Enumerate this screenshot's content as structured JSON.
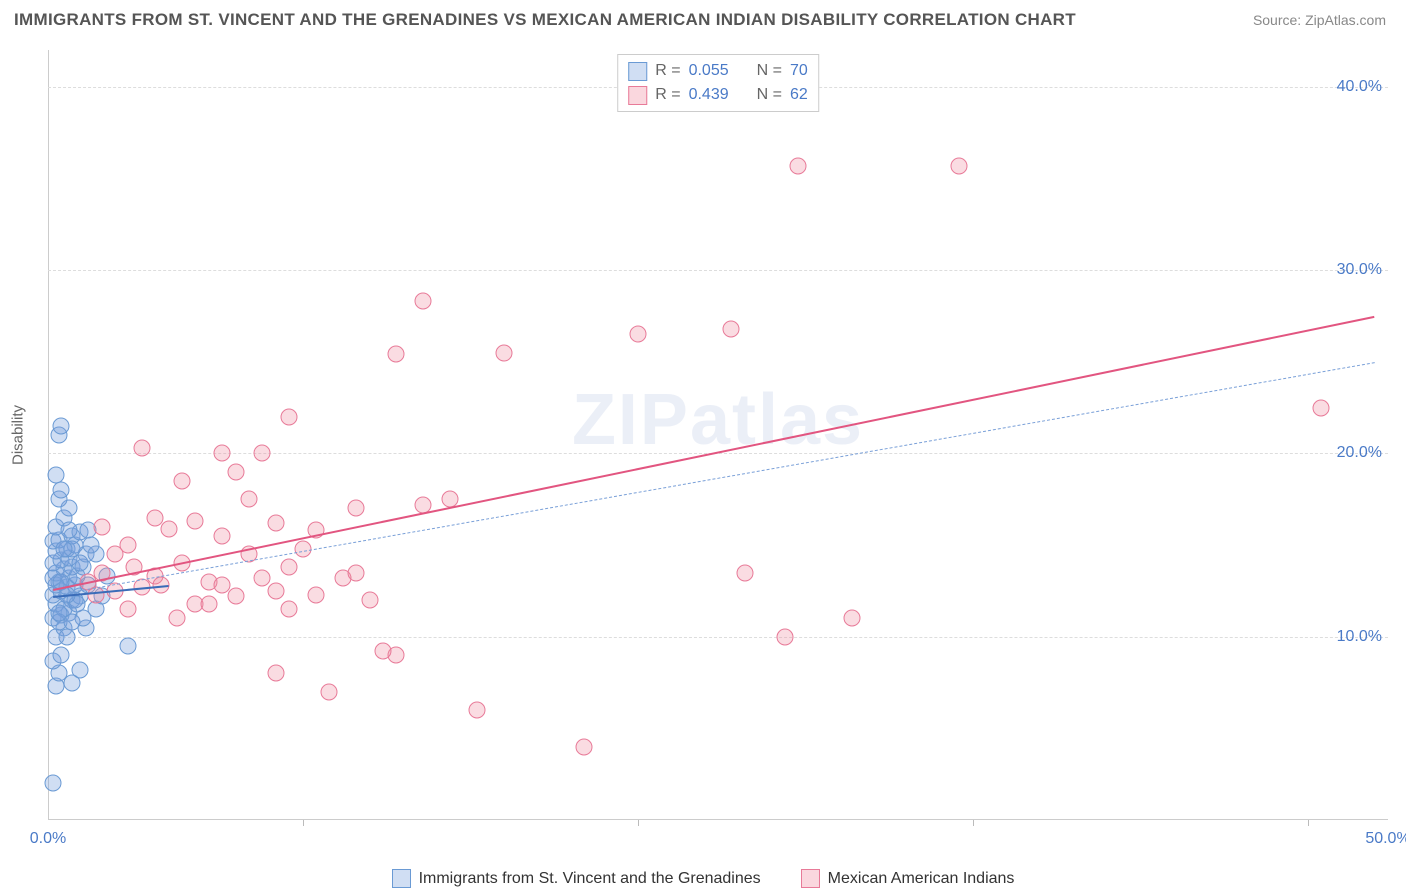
{
  "title": "IMMIGRANTS FROM ST. VINCENT AND THE GRENADINES VS MEXICAN AMERICAN INDIAN DISABILITY CORRELATION CHART",
  "source": "Source: ZipAtlas.com",
  "watermark": "ZIPatlas",
  "ylabel": "Disability",
  "chart": {
    "type": "scatter",
    "xlim": [
      0,
      50
    ],
    "ylim": [
      0,
      42
    ],
    "xtick_labels": [
      "0.0%",
      "50.0%"
    ],
    "xtick_positions": [
      0,
      50
    ],
    "xhash_positions": [
      9.5,
      22,
      34.5,
      47
    ],
    "ytick_labels": [
      "10.0%",
      "20.0%",
      "30.0%",
      "40.0%"
    ],
    "ytick_positions": [
      10,
      20,
      30,
      40
    ],
    "grid_color": "#dddddd",
    "background_color": "#ffffff"
  },
  "legend_top": [
    {
      "swatch_fill": "rgba(120,160,220,0.35)",
      "swatch_border": "#6a9ad4",
      "r_label": "R =",
      "r_value": "0.055",
      "n_label": "N =",
      "n_value": "70"
    },
    {
      "swatch_fill": "rgba(240,140,160,0.35)",
      "swatch_border": "#e87a98",
      "r_label": "R =",
      "r_value": "0.439",
      "n_label": "N =",
      "n_value": "62"
    }
  ],
  "legend_bottom": [
    {
      "swatch_fill": "rgba(120,160,220,0.35)",
      "swatch_border": "#6a9ad4",
      "label": "Immigrants from St. Vincent and the Grenadines"
    },
    {
      "swatch_fill": "rgba(240,140,160,0.35)",
      "swatch_border": "#e87a98",
      "label": "Mexican American Indians"
    }
  ],
  "series": [
    {
      "name": "blue",
      "fill": "rgba(120,160,220,0.35)",
      "border": "#6a9ad4",
      "trend": {
        "x1": 0.2,
        "y1": 12.2,
        "x2": 4.5,
        "y2": 12.8,
        "color": "#3a6cb8",
        "width": 2
      },
      "points": [
        [
          0.2,
          2.0
        ],
        [
          0.3,
          7.3
        ],
        [
          0.9,
          7.5
        ],
        [
          0.4,
          8.0
        ],
        [
          1.2,
          8.2
        ],
        [
          0.2,
          8.7
        ],
        [
          3.0,
          9.5
        ],
        [
          0.3,
          10.0
        ],
        [
          0.6,
          10.5
        ],
        [
          1.4,
          10.5
        ],
        [
          0.2,
          11.0
        ],
        [
          0.5,
          11.2
        ],
        [
          0.8,
          11.3
        ],
        [
          1.8,
          11.5
        ],
        [
          0.3,
          11.8
        ],
        [
          0.9,
          12.0
        ],
        [
          1.2,
          12.2
        ],
        [
          2.0,
          12.2
        ],
        [
          0.2,
          12.3
        ],
        [
          0.5,
          12.5
        ],
        [
          0.7,
          12.7
        ],
        [
          1.0,
          12.8
        ],
        [
          1.5,
          12.8
        ],
        [
          0.4,
          13.0
        ],
        [
          0.8,
          13.2
        ],
        [
          1.1,
          13.3
        ],
        [
          2.2,
          13.3
        ],
        [
          0.3,
          13.5
        ],
        [
          0.6,
          13.7
        ],
        [
          0.9,
          13.8
        ],
        [
          1.3,
          13.8
        ],
        [
          0.2,
          14.0
        ],
        [
          0.5,
          14.2
        ],
        [
          0.8,
          14.3
        ],
        [
          1.4,
          14.5
        ],
        [
          1.8,
          14.5
        ],
        [
          0.3,
          14.7
        ],
        [
          0.7,
          14.8
        ],
        [
          1.0,
          15.0
        ],
        [
          1.6,
          15.0
        ],
        [
          0.2,
          15.2
        ],
        [
          0.4,
          15.3
        ],
        [
          0.9,
          15.5
        ],
        [
          1.2,
          15.7
        ],
        [
          1.5,
          15.8
        ],
        [
          0.3,
          16.0
        ],
        [
          0.6,
          16.5
        ],
        [
          0.8,
          17.0
        ],
        [
          0.4,
          17.5
        ],
        [
          0.5,
          18.0
        ],
        [
          0.3,
          18.8
        ],
        [
          0.4,
          21.0
        ],
        [
          0.5,
          21.5
        ],
        [
          1.0,
          12.0
        ],
        [
          1.3,
          11.0
        ],
        [
          0.7,
          10.0
        ],
        [
          0.5,
          9.0
        ],
        [
          0.9,
          14.8
        ],
        [
          0.3,
          12.8
        ],
        [
          0.6,
          11.5
        ],
        [
          0.4,
          10.8
        ],
        [
          0.8,
          15.8
        ],
        [
          1.1,
          11.8
        ],
        [
          0.2,
          13.2
        ],
        [
          0.5,
          13.0
        ],
        [
          0.7,
          12.3
        ],
        [
          0.4,
          11.3
        ],
        [
          0.9,
          10.8
        ],
        [
          1.2,
          14.0
        ],
        [
          0.6,
          14.8
        ]
      ]
    },
    {
      "name": "pink",
      "fill": "rgba(240,140,160,0.30)",
      "border": "#e87a98",
      "trend": {
        "x1": 0.2,
        "y1": 12.6,
        "x2": 49.5,
        "y2": 27.5,
        "color": "#e25580",
        "width": 2.5
      },
      "dashed_trend": {
        "x1": 0.2,
        "y1": 12.3,
        "x2": 49.5,
        "y2": 25.0,
        "color": "#7aa0d8",
        "width": 1.5
      },
      "points": [
        [
          20.0,
          4.0
        ],
        [
          16.0,
          6.0
        ],
        [
          13.0,
          9.0
        ],
        [
          10.5,
          7.0
        ],
        [
          8.5,
          8.0
        ],
        [
          12.5,
          9.2
        ],
        [
          27.5,
          10.0
        ],
        [
          30.0,
          11.0
        ],
        [
          9.0,
          11.5
        ],
        [
          5.5,
          11.8
        ],
        [
          7.0,
          12.2
        ],
        [
          10.0,
          12.3
        ],
        [
          2.5,
          12.5
        ],
        [
          3.5,
          12.7
        ],
        [
          6.0,
          13.0
        ],
        [
          8.0,
          13.2
        ],
        [
          11.0,
          13.2
        ],
        [
          4.0,
          13.3
        ],
        [
          5.0,
          14.0
        ],
        [
          7.5,
          14.5
        ],
        [
          9.5,
          14.8
        ],
        [
          3.0,
          15.0
        ],
        [
          6.5,
          15.5
        ],
        [
          10.0,
          15.8
        ],
        [
          4.5,
          15.9
        ],
        [
          2.0,
          16.0
        ],
        [
          8.5,
          16.2
        ],
        [
          4.0,
          16.5
        ],
        [
          26.0,
          13.5
        ],
        [
          11.5,
          17.0
        ],
        [
          14.0,
          17.2
        ],
        [
          15.0,
          17.5
        ],
        [
          5.0,
          18.5
        ],
        [
          7.0,
          19.0
        ],
        [
          8.0,
          20.0
        ],
        [
          3.5,
          20.3
        ],
        [
          6.5,
          20.0
        ],
        [
          9.0,
          22.0
        ],
        [
          47.5,
          22.5
        ],
        [
          13.0,
          25.4
        ],
        [
          17.0,
          25.5
        ],
        [
          22.0,
          26.5
        ],
        [
          25.5,
          26.8
        ],
        [
          14.0,
          28.3
        ],
        [
          28.0,
          35.7
        ],
        [
          34.0,
          35.7
        ],
        [
          1.5,
          13.0
        ],
        [
          2.0,
          13.5
        ],
        [
          3.0,
          11.5
        ],
        [
          2.5,
          14.5
        ],
        [
          1.8,
          12.3
        ],
        [
          4.2,
          12.8
        ],
        [
          6.0,
          11.8
        ],
        [
          12.0,
          12.0
        ],
        [
          7.5,
          17.5
        ],
        [
          5.5,
          16.3
        ],
        [
          9.0,
          13.8
        ],
        [
          11.5,
          13.5
        ],
        [
          8.5,
          12.5
        ],
        [
          6.5,
          12.8
        ],
        [
          3.2,
          13.8
        ],
        [
          4.8,
          11.0
        ]
      ]
    }
  ]
}
